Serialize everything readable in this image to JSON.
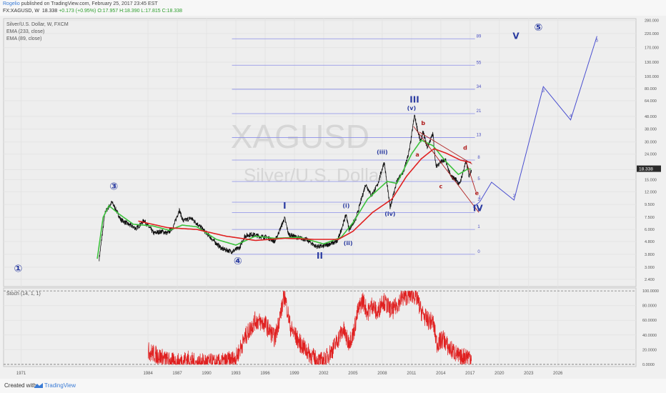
{
  "header": {
    "author": "Rogelio",
    "published": "published on TradingView.com, February 25, 2017 23:45 EST",
    "symbol": "FX:XAGUSD, W",
    "price": "18.338",
    "change": "+0.173 (+0.95%)",
    "ohlc": "O:17.957 H:18.390 L:17.815 C:18.338"
  },
  "chart_data": {
    "type": "line",
    "title": "Silver/U.S. Dollar, W, FXCM",
    "watermark_symbol": "XAGUSD",
    "watermark_name": "Silver/U.S. Dollar",
    "legend": [
      "EMA (233, close)",
      "EMA (89, close)"
    ],
    "x_axis": {
      "ticks": [
        "1971",
        "1984",
        "1987",
        "1990",
        "1993",
        "1996",
        "1999",
        "2002",
        "2005",
        "2008",
        "2011",
        "2014",
        "2017",
        "2020",
        "2023",
        "2026"
      ],
      "range": [
        1969.2,
        2034.0
      ]
    },
    "y_axis": {
      "scale": "log",
      "range": [
        2.1,
        290
      ],
      "ticks": [
        "280.000",
        "220.000",
        "170.000",
        "130.000",
        "100.000",
        "80.000",
        "64.000",
        "48.000",
        "38.000",
        "30.000",
        "24.000",
        "18.000",
        "15.000",
        "12.000",
        "9.500",
        "7.500",
        "6.000",
        "4.800",
        "3.800",
        "3.000",
        "2.400"
      ],
      "tick_values": [
        280,
        220,
        170,
        130,
        100,
        80,
        64,
        48,
        38,
        30,
        24,
        18,
        15,
        12,
        9.5,
        7.5,
        6,
        4.8,
        3.8,
        3,
        2.4
      ]
    },
    "last_price": {
      "value": 18.338,
      "label": "18.338"
    },
    "price_series_anchors": [
      [
        1979.0,
        3.5
      ],
      [
        1979.6,
        8.2
      ],
      [
        1980.3,
        9.9
      ],
      [
        1980.6,
        9.0
      ],
      [
        1981.2,
        7.2
      ],
      [
        1982.0,
        6.6
      ],
      [
        1982.8,
        6.1
      ],
      [
        1983.6,
        7.1
      ],
      [
        1984.0,
        6.4
      ],
      [
        1984.6,
        5.6
      ],
      [
        1985.4,
        5.8
      ],
      [
        1986.0,
        5.6
      ],
      [
        1986.6,
        6.3
      ],
      [
        1987.2,
        8.6
      ],
      [
        1987.6,
        7.0
      ],
      [
        1988.4,
        7.4
      ],
      [
        1989.2,
        6.5
      ],
      [
        1990.0,
        5.6
      ],
      [
        1990.8,
        4.8
      ],
      [
        1991.6,
        4.2
      ],
      [
        1992.6,
        4.0
      ],
      [
        1993.4,
        4.3
      ],
      [
        1993.9,
        5.3
      ],
      [
        1994.6,
        5.5
      ],
      [
        1995.4,
        5.3
      ],
      [
        1996.2,
        5.2
      ],
      [
        1997.0,
        4.8
      ],
      [
        1998.0,
        7.4
      ],
      [
        1998.4,
        5.5
      ],
      [
        1999.2,
        5.2
      ],
      [
        2000.2,
        5.0
      ],
      [
        2001.2,
        4.4
      ],
      [
        2001.9,
        4.4
      ],
      [
        2002.6,
        4.6
      ],
      [
        2003.4,
        4.8
      ],
      [
        2004.3,
        7.9
      ],
      [
        2004.6,
        6.0
      ],
      [
        2005.3,
        7.3
      ],
      [
        2006.3,
        13.8
      ],
      [
        2006.9,
        11.2
      ],
      [
        2007.5,
        13.5
      ],
      [
        2008.2,
        20.8
      ],
      [
        2008.8,
        9.0
      ],
      [
        2009.5,
        14.5
      ],
      [
        2010.2,
        17.5
      ],
      [
        2010.8,
        26.0
      ],
      [
        2011.3,
        49.0
      ],
      [
        2011.9,
        30.0
      ],
      [
        2012.2,
        36.0
      ],
      [
        2012.6,
        27.0
      ],
      [
        2013.2,
        35.0
      ],
      [
        2013.5,
        19.0
      ],
      [
        2014.0,
        21.0
      ],
      [
        2014.5,
        21.3
      ],
      [
        2015.0,
        16.0
      ],
      [
        2015.6,
        15.0
      ],
      [
        2015.9,
        13.6
      ],
      [
        2016.6,
        21.0
      ],
      [
        2016.9,
        16.0
      ],
      [
        2017.15,
        18.3
      ]
    ],
    "ema_89_anchors": [
      [
        1978.8,
        3.5
      ],
      [
        1979.4,
        7.5
      ],
      [
        1980.0,
        9.3
      ],
      [
        1981.0,
        8.0
      ],
      [
        1982.5,
        6.6
      ],
      [
        1984.5,
        6.4
      ],
      [
        1986.2,
        5.9
      ],
      [
        1987.5,
        6.5
      ],
      [
        1989.0,
        6.3
      ],
      [
        1991.0,
        5.0
      ],
      [
        1993.0,
        4.5
      ],
      [
        1995.0,
        5.3
      ],
      [
        1997.0,
        5.1
      ],
      [
        1999.5,
        5.2
      ],
      [
        2002.0,
        4.6
      ],
      [
        2003.8,
        5.2
      ],
      [
        2005.0,
        6.8
      ],
      [
        2006.5,
        10.5
      ],
      [
        2008.5,
        14.5
      ],
      [
        2009.5,
        14.0
      ],
      [
        2011.0,
        24.0
      ],
      [
        2012.0,
        31.0
      ],
      [
        2013.2,
        28.0
      ],
      [
        2014.5,
        21.0
      ],
      [
        2015.8,
        16.5
      ],
      [
        2016.8,
        18.3
      ],
      [
        2017.15,
        18.2
      ]
    ],
    "ema_233_anchors": [
      [
        1983.0,
        7.0
      ],
      [
        1986.0,
        6.2
      ],
      [
        1989.0,
        6.0
      ],
      [
        1992.0,
        5.3
      ],
      [
        1995.0,
        4.9
      ],
      [
        1998.0,
        5.1
      ],
      [
        2001.0,
        5.0
      ],
      [
        2003.5,
        5.0
      ],
      [
        2005.0,
        5.8
      ],
      [
        2007.0,
        8.2
      ],
      [
        2009.0,
        10.5
      ],
      [
        2010.5,
        16.0
      ],
      [
        2012.0,
        22.0
      ],
      [
        2013.3,
        26.5
      ],
      [
        2014.5,
        24.5
      ],
      [
        2016.0,
        21.5
      ],
      [
        2017.15,
        20.5
      ]
    ],
    "projection": {
      "x": [
        2017.3,
        2018.0,
        2019.2,
        2021.5,
        2024.5,
        2027.3,
        2030.0
      ],
      "y": [
        9.0,
        10.0,
        14.3,
        10.3,
        83.0,
        45.0,
        210.0
      ],
      "labels": [
        "",
        "1",
        "",
        "2",
        "3",
        "4",
        "5"
      ]
    },
    "fib_levels": {
      "labels": [
        "0",
        "1",
        "2",
        "3",
        "5",
        "8",
        "13",
        "21",
        "34",
        "55",
        "89"
      ],
      "values": [
        3.8,
        6.0,
        8.2,
        9.9,
        14.5,
        21.5,
        32.5,
        50.5,
        79.0,
        123.0,
        200.0
      ],
      "x_start": 1992.6,
      "x_end": 2017.5
    },
    "wave_labels": [
      {
        "text": "③",
        "x": 1980.5,
        "y": 12.5,
        "color": "#2a3ba0",
        "size": 14
      },
      {
        "text": "④",
        "x": 1993.2,
        "y": 3.15,
        "color": "#2a3ba0",
        "size": 14
      },
      {
        "text": "①",
        "x": 1970.7,
        "y": 2.75,
        "color": "#2a3ba0",
        "size": 14
      },
      {
        "text": "⑤",
        "x": 2024.0,
        "y": 232,
        "color": "#2a3ba0",
        "size": 14
      },
      {
        "text": "V",
        "x": 2021.7,
        "y": 200,
        "color": "#2a3ba0",
        "size": 12
      },
      {
        "text": "I",
        "x": 1998.0,
        "y": 8.8,
        "color": "#2a3ba0",
        "size": 12
      },
      {
        "text": "II",
        "x": 2001.6,
        "y": 3.5,
        "color": "#2a3ba0",
        "size": 12
      },
      {
        "text": "III",
        "x": 2011.3,
        "y": 62,
        "color": "#2a3ba0",
        "size": 12
      },
      {
        "text": "IV",
        "x": 2017.8,
        "y": 8.4,
        "color": "#2a3ba0",
        "size": 12
      },
      {
        "text": "(i)",
        "x": 2004.3,
        "y": 9.0,
        "color": "#2a3ba0",
        "size": 8
      },
      {
        "text": "(ii)",
        "x": 2004.5,
        "y": 4.5,
        "color": "#2a3ba0",
        "size": 8
      },
      {
        "text": "(iii)",
        "x": 2008.0,
        "y": 24,
        "color": "#2a3ba0",
        "size": 8
      },
      {
        "text": "(iv)",
        "x": 2008.8,
        "y": 7.7,
        "color": "#2a3ba0",
        "size": 8
      },
      {
        "text": "(v)",
        "x": 2011.0,
        "y": 54,
        "color": "#2a3ba0",
        "size": 8
      },
      {
        "text": "a",
        "x": 2011.6,
        "y": 23,
        "color": "#b02020",
        "size": 8
      },
      {
        "text": "b",
        "x": 2012.2,
        "y": 41,
        "color": "#b02020",
        "size": 8
      },
      {
        "text": "c",
        "x": 2014.0,
        "y": 12.8,
        "color": "#b02020",
        "size": 8
      },
      {
        "text": "d",
        "x": 2016.5,
        "y": 26,
        "color": "#b02020",
        "size": 8
      },
      {
        "text": "e",
        "x": 2017.7,
        "y": 11.3,
        "color": "#b02020",
        "size": 8
      }
    ],
    "stoch": {
      "label": "Stoch (14, 1, 1)",
      "ticks": [
        "100.0000",
        "80.0000",
        "60.0000",
        "40.0000",
        "20.0000",
        "0.0000"
      ],
      "tick_values": [
        100,
        80,
        60,
        40,
        20,
        0
      ],
      "range": [
        -3,
        104
      ],
      "anchors": [
        [
          1984.0,
          18
        ],
        [
          1985.0,
          12
        ],
        [
          1986.0,
          5
        ],
        [
          1987.0,
          2
        ],
        [
          1988.0,
          7
        ],
        [
          1989.0,
          1
        ],
        [
          1990.0,
          3
        ],
        [
          1991.0,
          1
        ],
        [
          1992.0,
          4
        ],
        [
          1993.0,
          8
        ],
        [
          1994.0,
          38
        ],
        [
          1995.0,
          60
        ],
        [
          1996.0,
          55
        ],
        [
          1997.0,
          35
        ],
        [
          1998.0,
          94
        ],
        [
          1998.6,
          50
        ],
        [
          1999.5,
          30
        ],
        [
          2000.5,
          15
        ],
        [
          2001.3,
          5
        ],
        [
          2002.0,
          4
        ],
        [
          2003.0,
          22
        ],
        [
          2004.0,
          48
        ],
        [
          2004.5,
          30
        ],
        [
          2005.0,
          40
        ],
        [
          2005.5,
          72
        ],
        [
          2006.0,
          88
        ],
        [
          2006.5,
          70
        ],
        [
          2007.0,
          82
        ],
        [
          2007.5,
          68
        ],
        [
          2008.0,
          88
        ],
        [
          2008.5,
          80
        ],
        [
          2009.0,
          72
        ],
        [
          2010.0,
          90
        ],
        [
          2011.0,
          96
        ],
        [
          2011.5,
          92
        ],
        [
          2012.0,
          72
        ],
        [
          2012.6,
          60
        ],
        [
          2013.2,
          58
        ],
        [
          2013.6,
          28
        ],
        [
          2014.3,
          35
        ],
        [
          2014.8,
          22
        ],
        [
          2015.3,
          18
        ],
        [
          2016.0,
          8
        ],
        [
          2016.5,
          12
        ],
        [
          2017.15,
          10
        ]
      ]
    }
  },
  "footer": {
    "created": "Created with",
    "brand": "TradingView"
  }
}
